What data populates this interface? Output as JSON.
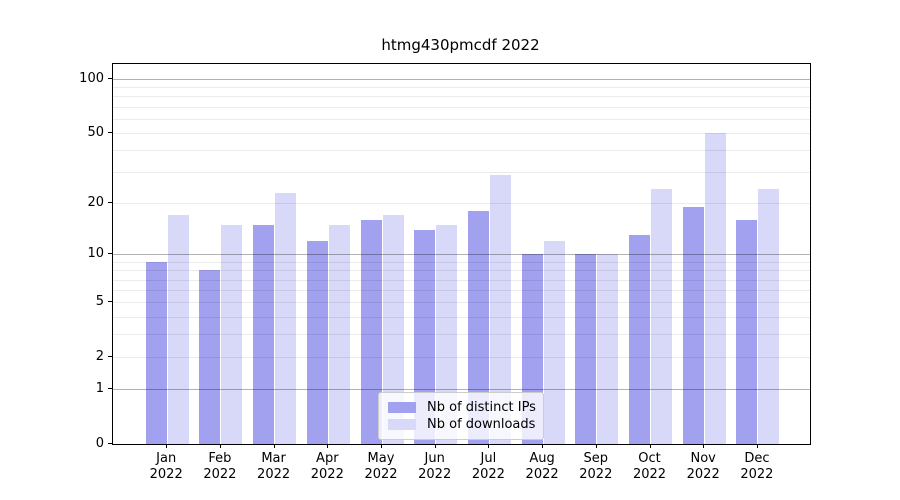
{
  "title": "htmg430pmcdf 2022",
  "chart_data": {
    "type": "bar",
    "title": "htmg430pmcdf 2022",
    "categories": [
      "Jan 2022",
      "Feb 2022",
      "Mar 2022",
      "Apr 2022",
      "May 2022",
      "Jun 2022",
      "Jul 2022",
      "Aug 2022",
      "Sep 2022",
      "Oct 2022",
      "Nov 2022",
      "Dec 2022"
    ],
    "series": [
      {
        "name": "Nb of distinct IPs",
        "color": "#a1a1f0",
        "values": [
          9,
          8,
          15,
          12,
          16,
          14,
          18,
          10,
          10,
          13,
          19,
          16
        ]
      },
      {
        "name": "Nb of downloads",
        "color": "#d8d8f8",
        "values": [
          17,
          15,
          23,
          15,
          17,
          15,
          29,
          12,
          10,
          24,
          50,
          24
        ]
      }
    ],
    "xlabel": "",
    "ylabel": "",
    "yscale": "log10(1+x)",
    "ylim": [
      0,
      118
    ],
    "yticks": [
      100,
      50,
      20,
      10,
      5,
      2,
      1,
      0
    ],
    "major_gridlines": [
      1,
      10,
      100
    ],
    "minor_gridlines": [
      2,
      3,
      4,
      5,
      6,
      7,
      8,
      9,
      20,
      30,
      40,
      50,
      60,
      70,
      80,
      90
    ],
    "grid": true,
    "legend_position": "lower center"
  },
  "colors": {
    "major_grid": "rgba(0,0,0,0.30)",
    "minor_grid": "rgba(0,0,0,0.08)",
    "spine": "#000000",
    "background": "#ffffff"
  }
}
